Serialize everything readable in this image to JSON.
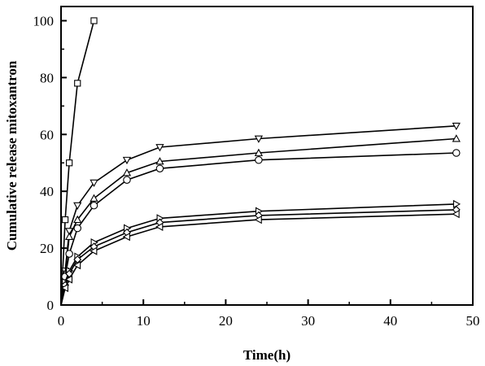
{
  "chart_data": {
    "type": "line",
    "title": "",
    "xlabel": "Time(h)",
    "ylabel": "Cumulative release mitoxantron",
    "xlim": [
      0,
      50
    ],
    "ylim": [
      0,
      105
    ],
    "xticks": [
      0,
      10,
      20,
      30,
      40,
      50
    ],
    "yticks": [
      0,
      20,
      40,
      60,
      80,
      100
    ],
    "grid": false,
    "legend": "none",
    "series": [
      {
        "marker": "square",
        "x": [
          0,
          0.5,
          1,
          2,
          4
        ],
        "y": [
          0,
          30,
          50,
          78,
          100
        ]
      },
      {
        "marker": "triangle-down",
        "x": [
          0,
          0.5,
          1,
          2,
          4,
          8,
          12,
          24,
          48
        ],
        "y": [
          0,
          12,
          26,
          35,
          43,
          51,
          55.5,
          58.5,
          63
        ]
      },
      {
        "marker": "triangle-up",
        "x": [
          0,
          0.5,
          1,
          2,
          4,
          8,
          12,
          24,
          48
        ],
        "y": [
          0,
          11,
          24,
          30,
          37.5,
          46.5,
          50.5,
          53.5,
          58.5
        ]
      },
      {
        "marker": "circle",
        "x": [
          0,
          0.5,
          1,
          2,
          4,
          8,
          12,
          24,
          48
        ],
        "y": [
          0,
          10,
          18,
          27,
          35,
          44,
          48,
          51,
          53.5
        ]
      },
      {
        "marker": "triangle-right",
        "x": [
          0,
          0.5,
          1,
          2,
          4,
          8,
          12,
          24,
          48
        ],
        "y": [
          0,
          8,
          12,
          17,
          22,
          27,
          30.5,
          33,
          35.5
        ]
      },
      {
        "marker": "diamond",
        "x": [
          0,
          0.5,
          1,
          2,
          4,
          8,
          12,
          24,
          48
        ],
        "y": [
          0,
          7,
          11,
          16,
          20.5,
          25.5,
          29,
          31.5,
          33.5
        ]
      },
      {
        "marker": "triangle-left",
        "x": [
          0,
          0.5,
          1,
          2,
          4,
          8,
          12,
          24,
          48
        ],
        "y": [
          0,
          6,
          9,
          14,
          19,
          24,
          27.5,
          30,
          32
        ]
      }
    ]
  }
}
